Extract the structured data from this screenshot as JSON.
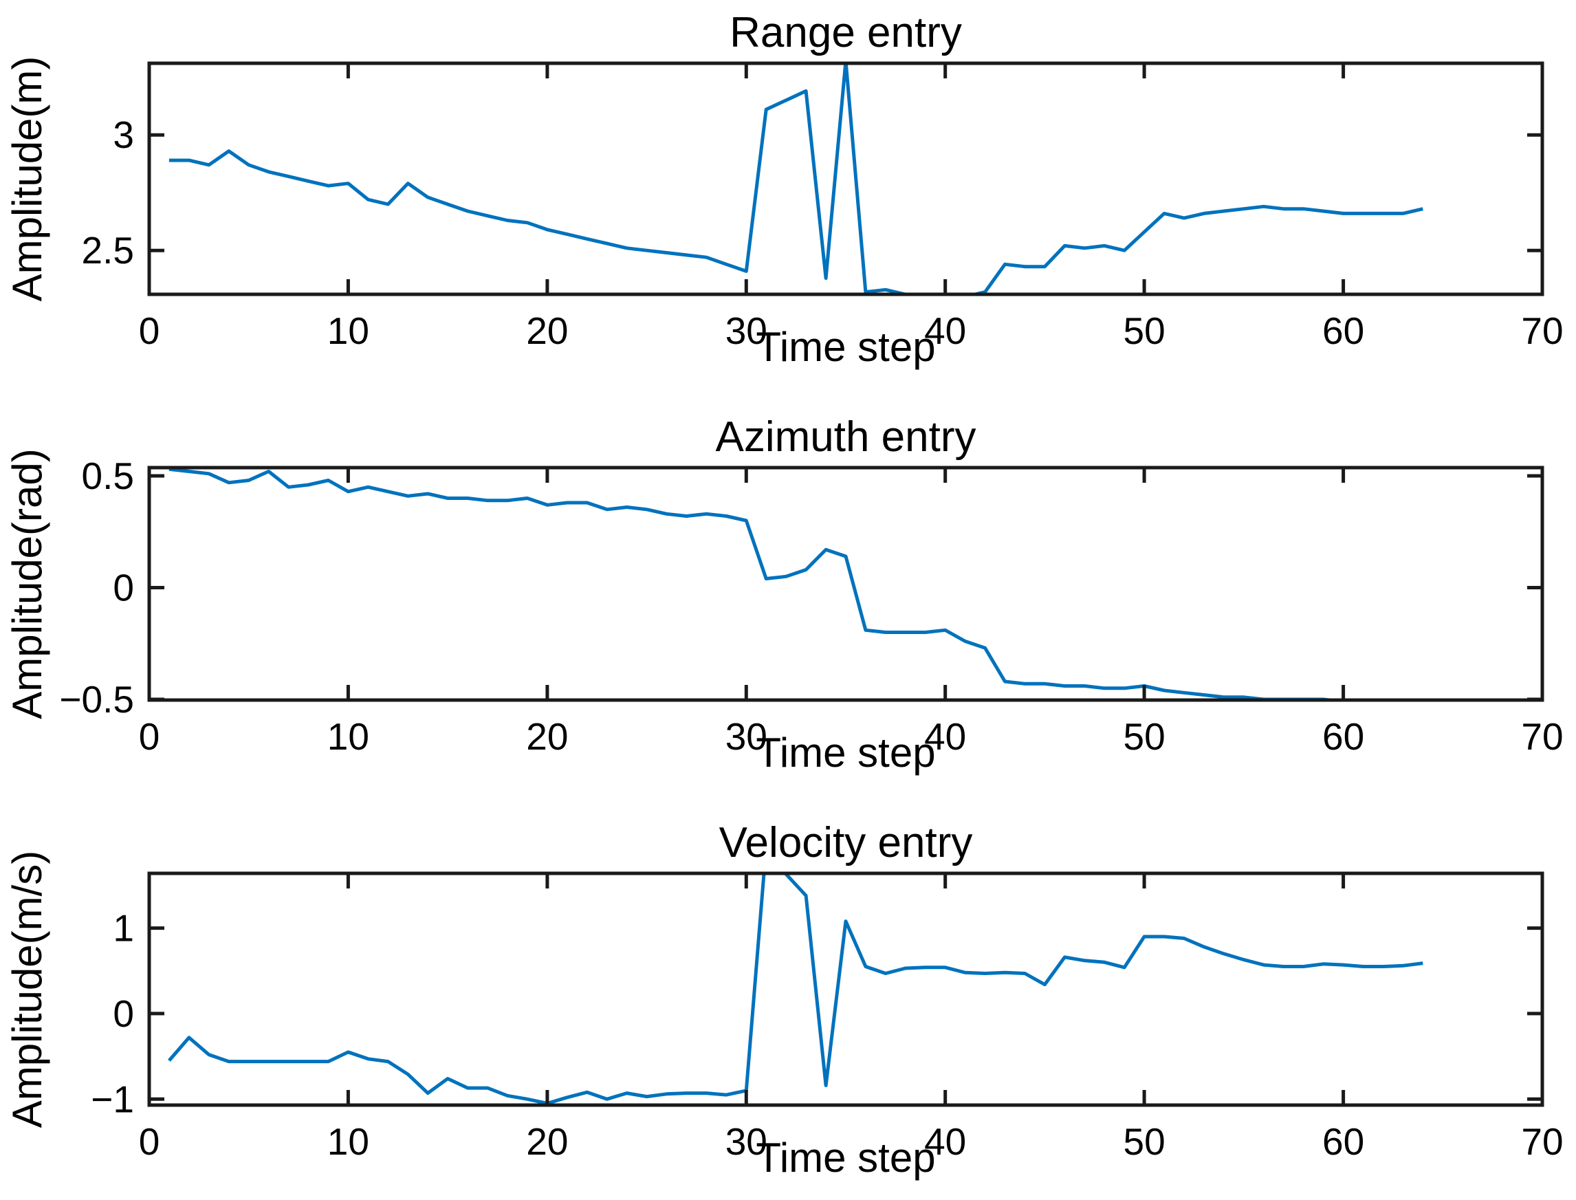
{
  "figure": {
    "line_color": "#0072BD",
    "axis_color": "#1a1a1a",
    "text_color": "#000000"
  },
  "chart_data": [
    {
      "type": "line",
      "title": "Range entry",
      "xlabel": "Time step",
      "ylabel": "Amplitude(m)",
      "xlim": [
        0,
        70
      ],
      "ylim": [
        2.31,
        3.31
      ],
      "xticks": [
        0,
        10,
        20,
        30,
        40,
        50,
        60,
        70
      ],
      "xtick_labels": [
        "0",
        "10",
        "20",
        "30",
        "40",
        "50",
        "60",
        "70"
      ],
      "yticks": [
        2.5,
        3
      ],
      "ytick_labels": [
        "2.5",
        "3"
      ],
      "legend": null,
      "grid": false,
      "x": [
        1,
        2,
        3,
        4,
        5,
        6,
        7,
        8,
        9,
        10,
        11,
        12,
        13,
        14,
        15,
        16,
        17,
        18,
        19,
        20,
        21,
        22,
        23,
        24,
        25,
        26,
        27,
        28,
        29,
        30,
        31,
        32,
        33,
        34,
        35,
        36,
        37,
        38,
        39,
        40,
        41,
        42,
        43,
        44,
        45,
        46,
        47,
        48,
        49,
        50,
        51,
        52,
        53,
        54,
        55,
        56,
        57,
        58,
        59,
        60,
        61,
        62,
        63,
        64
      ],
      "y": [
        2.89,
        2.89,
        2.87,
        2.93,
        2.87,
        2.84,
        2.82,
        2.8,
        2.78,
        2.79,
        2.72,
        2.7,
        2.79,
        2.73,
        2.7,
        2.67,
        2.65,
        2.63,
        2.62,
        2.59,
        2.57,
        2.55,
        2.53,
        2.51,
        2.5,
        2.49,
        2.48,
        2.47,
        2.44,
        2.41,
        3.11,
        3.15,
        3.19,
        2.38,
        3.32,
        2.32,
        2.33,
        2.31,
        2.3,
        2.3,
        2.3,
        2.32,
        2.44,
        2.43,
        2.43,
        2.52,
        2.51,
        2.52,
        2.5,
        2.58,
        2.66,
        2.64,
        2.66,
        2.67,
        2.68,
        2.69,
        2.68,
        2.68,
        2.67,
        2.66,
        2.66,
        2.66,
        2.66,
        2.68
      ]
    },
    {
      "type": "line",
      "title": "Azimuth entry",
      "xlabel": "Time step",
      "ylabel": "Amplitude(rad)",
      "xlim": [
        0,
        70
      ],
      "ylim": [
        -0.503,
        0.537
      ],
      "xticks": [
        0,
        10,
        20,
        30,
        40,
        50,
        60,
        70
      ],
      "xtick_labels": [
        "0",
        "10",
        "20",
        "30",
        "40",
        "50",
        "60",
        "70"
      ],
      "yticks": [
        -0.5,
        0,
        0.5
      ],
      "ytick_labels": [
        "−0.5",
        "0",
        "0.5"
      ],
      "legend": null,
      "grid": false,
      "x": [
        1,
        2,
        3,
        4,
        5,
        6,
        7,
        8,
        9,
        10,
        11,
        12,
        13,
        14,
        15,
        16,
        17,
        18,
        19,
        20,
        21,
        22,
        23,
        24,
        25,
        26,
        27,
        28,
        29,
        30,
        31,
        32,
        33,
        34,
        35,
        36,
        37,
        38,
        39,
        40,
        41,
        42,
        43,
        44,
        45,
        46,
        47,
        48,
        49,
        50,
        51,
        52,
        53,
        54,
        55,
        56,
        57,
        58,
        59,
        60,
        61,
        62,
        63,
        64
      ],
      "y": [
        0.53,
        0.52,
        0.51,
        0.47,
        0.48,
        0.52,
        0.45,
        0.46,
        0.48,
        0.43,
        0.45,
        0.43,
        0.41,
        0.42,
        0.4,
        0.4,
        0.39,
        0.39,
        0.4,
        0.37,
        0.38,
        0.38,
        0.35,
        0.36,
        0.35,
        0.33,
        0.32,
        0.33,
        0.32,
        0.3,
        0.04,
        0.05,
        0.08,
        0.17,
        0.14,
        -0.19,
        -0.2,
        -0.2,
        -0.2,
        -0.19,
        -0.24,
        -0.27,
        -0.42,
        -0.43,
        -0.43,
        -0.44,
        -0.44,
        -0.45,
        -0.45,
        -0.44,
        -0.46,
        -0.47,
        -0.48,
        -0.49,
        -0.49,
        -0.5,
        -0.5,
        -0.5,
        -0.5,
        -0.51,
        -0.51,
        -0.51,
        -0.51,
        -0.51
      ]
    },
    {
      "type": "line",
      "title": "Velocity entry",
      "xlabel": "Time step",
      "ylabel": "Amplitude(m/s)",
      "xlim": [
        0,
        70
      ],
      "ylim": [
        -1.07,
        1.64
      ],
      "xticks": [
        0,
        10,
        20,
        30,
        40,
        50,
        60,
        70
      ],
      "xtick_labels": [
        "0",
        "10",
        "20",
        "30",
        "40",
        "50",
        "60",
        "70"
      ],
      "yticks": [
        -1,
        0,
        1
      ],
      "ytick_labels": [
        "−1",
        "0",
        "1"
      ],
      "legend": null,
      "grid": false,
      "x": [
        1,
        2,
        3,
        4,
        5,
        6,
        7,
        8,
        9,
        10,
        11,
        12,
        13,
        14,
        15,
        16,
        17,
        18,
        19,
        20,
        21,
        22,
        23,
        24,
        25,
        26,
        27,
        28,
        29,
        30,
        31,
        32,
        33,
        34,
        35,
        36,
        37,
        38,
        39,
        40,
        41,
        42,
        43,
        44,
        45,
        46,
        47,
        48,
        49,
        50,
        51,
        52,
        53,
        54,
        55,
        56,
        57,
        58,
        59,
        60,
        61,
        62,
        63,
        64
      ],
      "y": [
        -0.55,
        -0.28,
        -0.48,
        -0.56,
        -0.56,
        -0.56,
        -0.56,
        -0.56,
        -0.56,
        -0.45,
        -0.53,
        -0.56,
        -0.71,
        -0.93,
        -0.76,
        -0.87,
        -0.87,
        -0.96,
        -1.0,
        -1.05,
        -0.98,
        -0.92,
        -1.0,
        -0.93,
        -0.97,
        -0.94,
        -0.93,
        -0.93,
        -0.95,
        -0.9,
        1.95,
        1.63,
        1.38,
        -0.84,
        1.08,
        0.55,
        0.47,
        0.53,
        0.54,
        0.54,
        0.48,
        0.47,
        0.48,
        0.47,
        0.34,
        0.66,
        0.62,
        0.6,
        0.54,
        0.9,
        0.9,
        0.88,
        0.78,
        0.7,
        0.63,
        0.57,
        0.55,
        0.55,
        0.58,
        0.57,
        0.55,
        0.55,
        0.56,
        0.59
      ]
    }
  ]
}
